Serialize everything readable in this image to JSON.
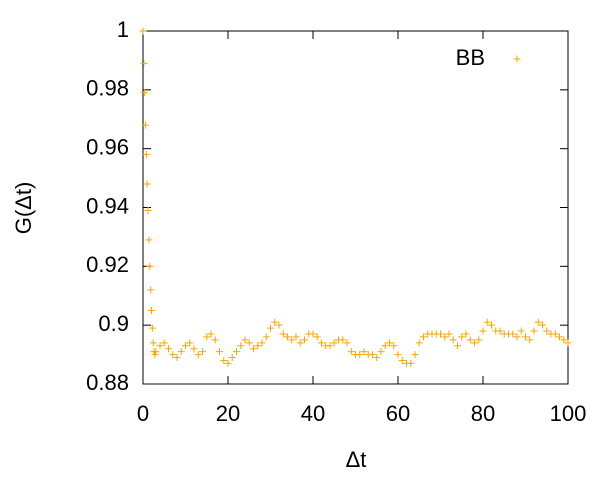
{
  "chart_data": {
    "type": "scatter",
    "xlabel": "Δt",
    "ylabel": "G(Δt)",
    "xlim": [
      0,
      100
    ],
    "xticks": [
      0,
      20,
      40,
      60,
      80,
      100
    ],
    "ylim": [
      0.88,
      1
    ],
    "yticks": [
      0.88,
      0.9,
      0.92,
      0.94,
      0.96,
      0.98,
      1
    ],
    "legend": "upper right",
    "grid": false,
    "series": [
      {
        "name": "BB",
        "color": "#ffa500",
        "x": [
          0,
          0.2,
          0.4,
          0.6,
          0.8,
          1.0,
          1.2,
          1.4,
          1.6,
          1.8,
          2.0,
          2.2,
          2.4,
          2.6,
          2.8,
          3,
          4,
          5,
          6,
          7,
          8,
          9,
          10,
          11,
          12,
          13,
          14,
          15,
          16,
          17,
          18,
          19,
          20,
          21,
          22,
          23,
          24,
          25,
          26,
          27,
          28,
          29,
          30,
          31,
          32,
          33,
          34,
          35,
          36,
          37,
          38,
          39,
          40,
          41,
          42,
          43,
          44,
          45,
          46,
          47,
          48,
          49,
          50,
          51,
          52,
          53,
          54,
          55,
          56,
          57,
          58,
          59,
          60,
          61,
          62,
          63,
          64,
          65,
          66,
          67,
          68,
          69,
          70,
          71,
          72,
          73,
          74,
          75,
          76,
          77,
          78,
          79,
          80,
          81,
          82,
          83,
          84,
          85,
          86,
          87,
          88,
          89,
          90,
          91,
          92,
          93,
          94,
          95,
          96,
          97,
          98,
          99,
          100
        ],
        "values": [
          1.0,
          0.989,
          0.979,
          0.968,
          0.958,
          0.948,
          0.939,
          0.929,
          0.92,
          0.912,
          0.905,
          0.899,
          0.894,
          0.891,
          0.89,
          0.891,
          0.893,
          0.894,
          0.892,
          0.89,
          0.889,
          0.891,
          0.893,
          0.894,
          0.892,
          0.89,
          0.891,
          0.896,
          0.897,
          0.895,
          0.891,
          0.888,
          0.887,
          0.889,
          0.891,
          0.893,
          0.895,
          0.894,
          0.892,
          0.893,
          0.894,
          0.896,
          0.899,
          0.901,
          0.9,
          0.897,
          0.896,
          0.895,
          0.896,
          0.894,
          0.895,
          0.897,
          0.897,
          0.896,
          0.894,
          0.893,
          0.893,
          0.894,
          0.895,
          0.895,
          0.894,
          0.891,
          0.89,
          0.89,
          0.891,
          0.89,
          0.89,
          0.889,
          0.891,
          0.893,
          0.894,
          0.893,
          0.89,
          0.888,
          0.887,
          0.887,
          0.89,
          0.894,
          0.896,
          0.897,
          0.897,
          0.897,
          0.897,
          0.896,
          0.897,
          0.895,
          0.893,
          0.896,
          0.897,
          0.895,
          0.894,
          0.895,
          0.898,
          0.901,
          0.9,
          0.898,
          0.898,
          0.897,
          0.897,
          0.897,
          0.896,
          0.898,
          0.896,
          0.895,
          0.898,
          0.901,
          0.9,
          0.898,
          0.897,
          0.897,
          0.896,
          0.895,
          0.894
        ]
      }
    ]
  }
}
